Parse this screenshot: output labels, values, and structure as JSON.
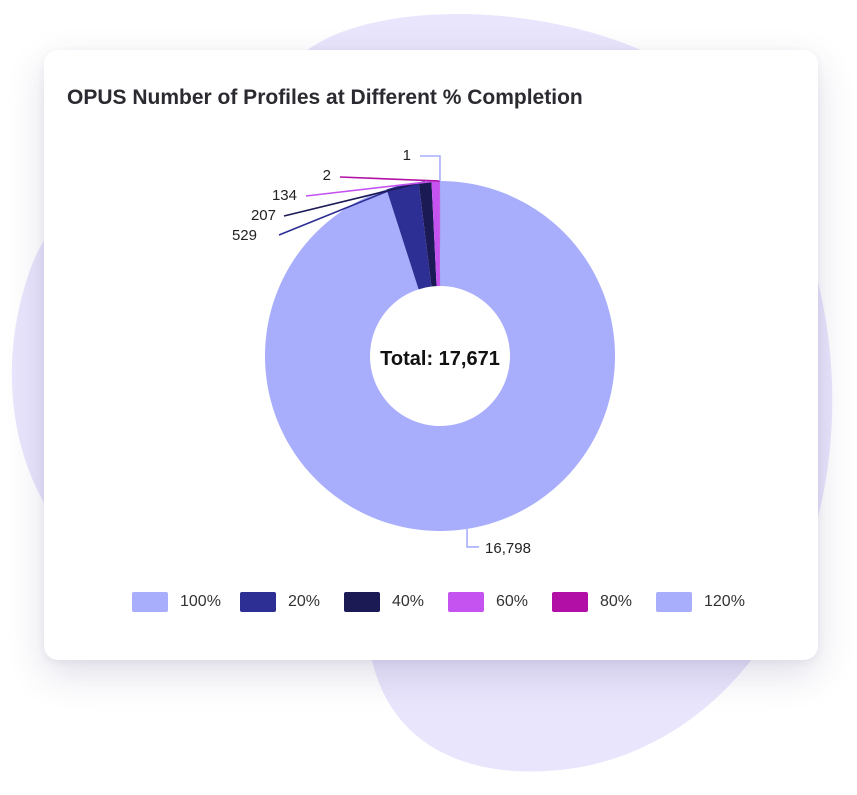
{
  "chart_data": {
    "type": "pie",
    "variant": "donut",
    "title": "OPUS Number of Profiles at Different % Completion",
    "center_label": "Total: 17,671",
    "slices": [
      {
        "name": "100%",
        "value": 16798,
        "label": "16,798",
        "color": "#a8aefc"
      },
      {
        "name": "20%",
        "value": 529,
        "label": "529",
        "color": "#2e2f94"
      },
      {
        "name": "40%",
        "value": 207,
        "label": "207",
        "color": "#1c1a55"
      },
      {
        "name": "60%",
        "value": 134,
        "label": "134",
        "color": "#c453f0"
      },
      {
        "name": "80%",
        "value": 2,
        "label": "2",
        "color": "#b10fa6"
      },
      {
        "name": "120%",
        "value": 1,
        "label": "1",
        "color": "#a8aefc"
      }
    ],
    "legend": [
      "100%",
      "20%",
      "40%",
      "60%",
      "80%",
      "120%"
    ],
    "legend_position": "bottom"
  },
  "colors": {
    "background_blob": "#e9e5fc",
    "card": "#ffffff",
    "title_text": "#2a2a30",
    "donut_hole": "#ffffff",
    "leader_100": "#a8aefc",
    "leader_1": "#a8aefc"
  }
}
